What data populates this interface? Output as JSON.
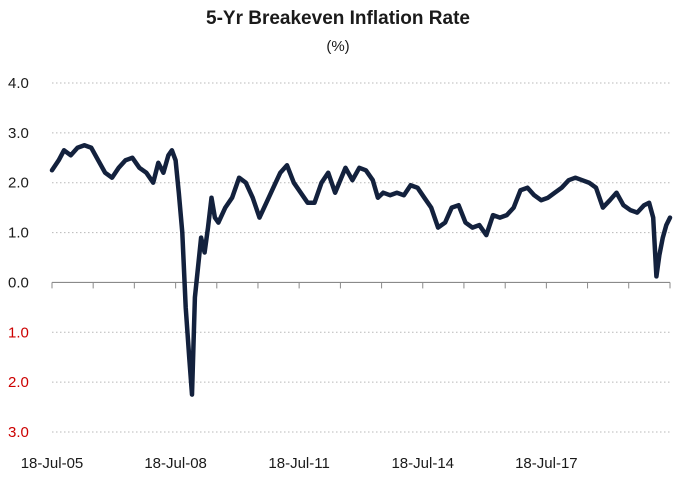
{
  "chart_data": {
    "type": "line",
    "title": "5-Yr Breakeven Inflation Rate",
    "subtitle": "(%)",
    "ylim": [
      -3.0,
      4.0
    ],
    "yticks": [
      {
        "value": 4.0,
        "label": "4.0",
        "color": "#1a1a1a"
      },
      {
        "value": 3.0,
        "label": "3.0",
        "color": "#1a1a1a"
      },
      {
        "value": 2.0,
        "label": "2.0",
        "color": "#1a1a1a"
      },
      {
        "value": 1.0,
        "label": "1.0",
        "color": "#1a1a1a"
      },
      {
        "value": 0.0,
        "label": "0.0",
        "color": "#1a1a1a"
      },
      {
        "value": -1.0,
        "label": "1.0",
        "color": "#cc0000"
      },
      {
        "value": -2.0,
        "label": "2.0",
        "color": "#cc0000"
      },
      {
        "value": -3.0,
        "label": "3.0",
        "color": "#cc0000"
      }
    ],
    "xlim": [
      "2005-07-18",
      "2020-07-18"
    ],
    "xticks": [
      {
        "date": "2005-07-18",
        "label": "18-Jul-05"
      },
      {
        "date": "2008-07-18",
        "label": "18-Jul-08"
      },
      {
        "date": "2011-07-18",
        "label": "18-Jul-11"
      },
      {
        "date": "2014-07-18",
        "label": "18-Jul-14"
      },
      {
        "date": "2017-07-18",
        "label": "18-Jul-17"
      }
    ],
    "grid": true,
    "series_color": "#13213d",
    "series": [
      {
        "points": [
          [
            "2005-07-18",
            2.25
          ],
          [
            "2005-09-15",
            2.45
          ],
          [
            "2005-11-01",
            2.65
          ],
          [
            "2006-01-01",
            2.55
          ],
          [
            "2006-03-01",
            2.7
          ],
          [
            "2006-05-01",
            2.75
          ],
          [
            "2006-07-01",
            2.7
          ],
          [
            "2006-09-01",
            2.45
          ],
          [
            "2006-11-01",
            2.2
          ],
          [
            "2007-01-01",
            2.1
          ],
          [
            "2007-03-01",
            2.3
          ],
          [
            "2007-05-01",
            2.45
          ],
          [
            "2007-07-01",
            2.5
          ],
          [
            "2007-09-01",
            2.3
          ],
          [
            "2007-11-01",
            2.2
          ],
          [
            "2008-01-01",
            2.0
          ],
          [
            "2008-02-15",
            2.4
          ],
          [
            "2008-04-01",
            2.2
          ],
          [
            "2008-05-15",
            2.55
          ],
          [
            "2008-06-15",
            2.65
          ],
          [
            "2008-07-18",
            2.45
          ],
          [
            "2008-08-15",
            1.8
          ],
          [
            "2008-09-15",
            1.0
          ],
          [
            "2008-10-15",
            -0.5
          ],
          [
            "2008-11-15",
            -1.5
          ],
          [
            "2008-12-10",
            -2.25
          ],
          [
            "2009-01-05",
            -0.3
          ],
          [
            "2009-02-01",
            0.3
          ],
          [
            "2009-03-01",
            0.9
          ],
          [
            "2009-04-01",
            0.6
          ],
          [
            "2009-05-01",
            1.1
          ],
          [
            "2009-06-01",
            1.7
          ],
          [
            "2009-07-01",
            1.3
          ],
          [
            "2009-08-01",
            1.2
          ],
          [
            "2009-10-01",
            1.5
          ],
          [
            "2009-12-01",
            1.7
          ],
          [
            "2010-02-01",
            2.1
          ],
          [
            "2010-04-01",
            2.0
          ],
          [
            "2010-06-01",
            1.7
          ],
          [
            "2010-08-01",
            1.3
          ],
          [
            "2010-10-01",
            1.6
          ],
          [
            "2010-12-01",
            1.9
          ],
          [
            "2011-02-01",
            2.2
          ],
          [
            "2011-04-01",
            2.35
          ],
          [
            "2011-06-01",
            2.0
          ],
          [
            "2011-08-01",
            1.8
          ],
          [
            "2011-10-01",
            1.6
          ],
          [
            "2011-12-01",
            1.6
          ],
          [
            "2012-02-01",
            2.0
          ],
          [
            "2012-04-01",
            2.2
          ],
          [
            "2012-06-01",
            1.8
          ],
          [
            "2012-09-01",
            2.3
          ],
          [
            "2012-11-01",
            2.05
          ],
          [
            "2013-01-01",
            2.3
          ],
          [
            "2013-03-01",
            2.25
          ],
          [
            "2013-05-01",
            2.05
          ],
          [
            "2013-06-15",
            1.7
          ],
          [
            "2013-08-01",
            1.8
          ],
          [
            "2013-10-01",
            1.75
          ],
          [
            "2013-12-01",
            1.8
          ],
          [
            "2014-02-01",
            1.75
          ],
          [
            "2014-04-01",
            1.95
          ],
          [
            "2014-06-01",
            1.9
          ],
          [
            "2014-08-01",
            1.7
          ],
          [
            "2014-10-01",
            1.5
          ],
          [
            "2014-12-01",
            1.1
          ],
          [
            "2015-02-01",
            1.2
          ],
          [
            "2015-04-01",
            1.5
          ],
          [
            "2015-06-01",
            1.55
          ],
          [
            "2015-08-01",
            1.2
          ],
          [
            "2015-10-01",
            1.1
          ],
          [
            "2015-12-01",
            1.15
          ],
          [
            "2016-02-01",
            0.95
          ],
          [
            "2016-04-01",
            1.35
          ],
          [
            "2016-06-01",
            1.3
          ],
          [
            "2016-08-01",
            1.35
          ],
          [
            "2016-10-01",
            1.5
          ],
          [
            "2016-12-01",
            1.85
          ],
          [
            "2017-02-01",
            1.9
          ],
          [
            "2017-04-01",
            1.75
          ],
          [
            "2017-06-01",
            1.65
          ],
          [
            "2017-08-01",
            1.7
          ],
          [
            "2017-10-01",
            1.8
          ],
          [
            "2017-12-01",
            1.9
          ],
          [
            "2018-02-01",
            2.05
          ],
          [
            "2018-04-01",
            2.1
          ],
          [
            "2018-06-01",
            2.05
          ],
          [
            "2018-08-01",
            2.0
          ],
          [
            "2018-10-01",
            1.9
          ],
          [
            "2018-12-01",
            1.5
          ],
          [
            "2019-02-01",
            1.65
          ],
          [
            "2019-04-01",
            1.8
          ],
          [
            "2019-06-01",
            1.55
          ],
          [
            "2019-08-01",
            1.45
          ],
          [
            "2019-10-01",
            1.4
          ],
          [
            "2019-12-01",
            1.55
          ],
          [
            "2020-01-15",
            1.6
          ],
          [
            "2020-02-20",
            1.3
          ],
          [
            "2020-03-19",
            0.12
          ],
          [
            "2020-04-15",
            0.55
          ],
          [
            "2020-05-15",
            0.9
          ],
          [
            "2020-06-15",
            1.15
          ],
          [
            "2020-07-18",
            1.3
          ]
        ]
      }
    ]
  }
}
